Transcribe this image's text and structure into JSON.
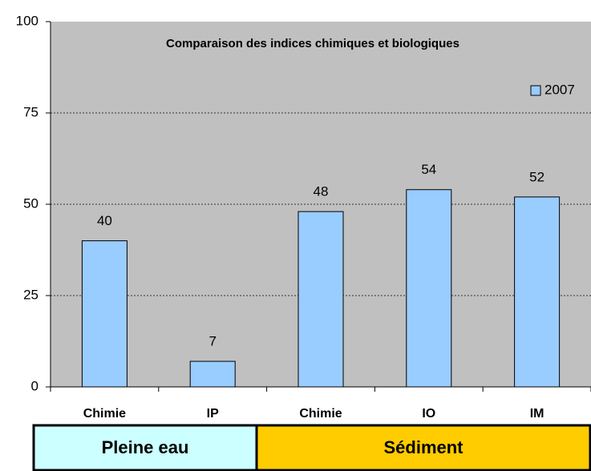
{
  "chart_data": {
    "type": "bar",
    "title": "Comparaison des indices chimiques et biologiques",
    "categories": [
      "Chimie",
      "IP",
      "Chimie",
      "IO",
      "IM"
    ],
    "series": [
      {
        "name": "2007",
        "color": "#99ccff",
        "values": [
          40,
          7,
          48,
          54,
          52
        ]
      }
    ],
    "ylim": [
      0,
      100
    ],
    "yticks": [
      0,
      25,
      50,
      75,
      100
    ],
    "grid": true,
    "legend": "top-right",
    "groups": [
      "Pleine eau",
      "Sédiment"
    ]
  }
}
